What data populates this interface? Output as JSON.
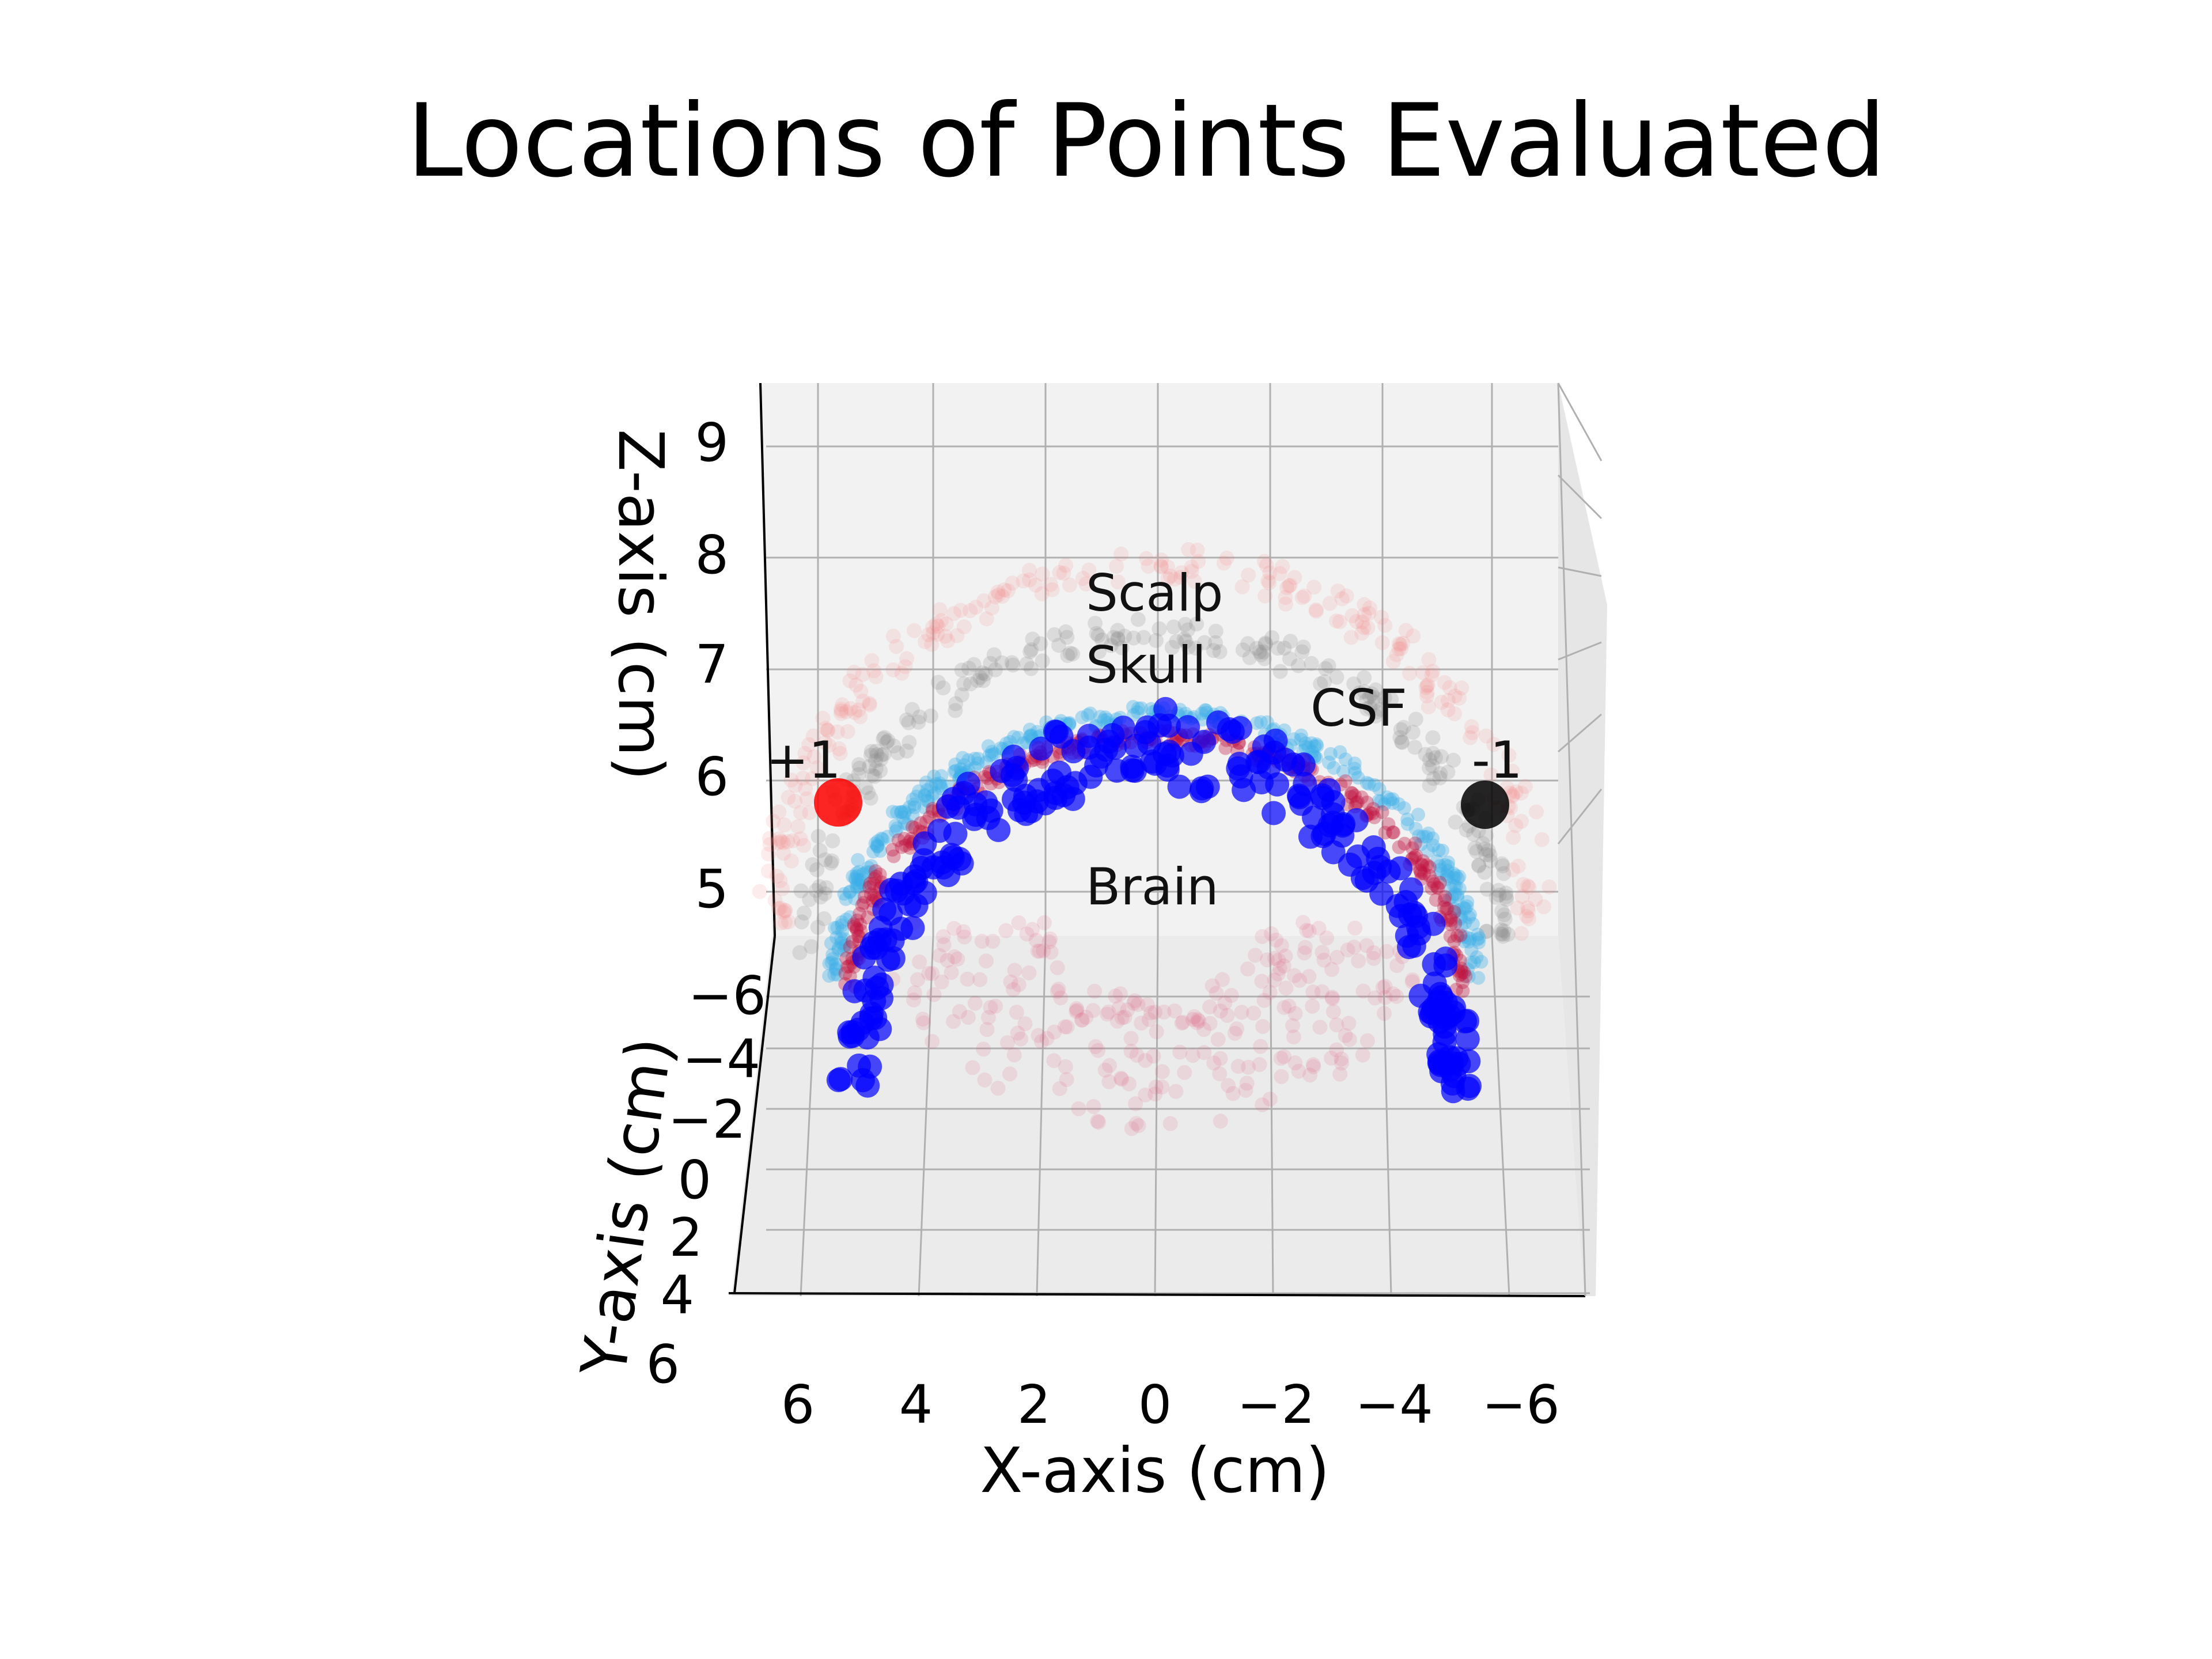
{
  "chart_data": {
    "type": "scatter",
    "subtype": "3d-scatter",
    "title": "Locations of Points Evaluated",
    "xlabel": "X-axis (cm)",
    "ylabel": "Y-axis (cm)",
    "zlabel": "Z-axis (cm)",
    "x_ticks": [
      "6",
      "4",
      "2",
      "0",
      "−2",
      "−4",
      "−6"
    ],
    "y_ticks": [
      "−6",
      "−4",
      "−2",
      "0",
      "2",
      "4",
      "6"
    ],
    "z_ticks": [
      "5",
      "6",
      "7",
      "8",
      "9"
    ],
    "xlim": [
      7.2,
      -7.2
    ],
    "ylim": [
      -7,
      6
    ],
    "zlim": [
      4.6,
      9.5
    ],
    "grid": true,
    "annotations": [
      {
        "text": "Scalp",
        "x": 0,
        "y": 0,
        "z": 7.8
      },
      {
        "text": "Skull",
        "x": 0,
        "y": 0,
        "z": 7.2
      },
      {
        "text": "CSF",
        "x": -3.5,
        "y": 0,
        "z": 6.4
      },
      {
        "text": "Brain",
        "x": 0,
        "y": 0,
        "z": 5.1
      },
      {
        "text": "+1",
        "x": 6.5,
        "y": 0,
        "z": 6.1
      },
      {
        "text": "-1",
        "x": -6.2,
        "y": 0,
        "z": 6.1
      }
    ],
    "electrodes": [
      {
        "label": "+1",
        "x": 5.4,
        "y": 0,
        "z": 5.8,
        "color": "#ff0000"
      },
      {
        "label": "-1",
        "x": -5.4,
        "y": 0,
        "z": 5.8,
        "color": "#000000"
      }
    ],
    "series": [
      {
        "layer": "scalp",
        "color": "#f08080",
        "opacity": 0.15,
        "radius_cm": 7.9
      },
      {
        "layer": "skull",
        "color": "#808080",
        "opacity": 0.2,
        "radius_cm": 7.0
      },
      {
        "layer": "csf",
        "color": "#3bb0e8",
        "opacity": 0.35,
        "radius_cm": 6.6
      },
      {
        "layer": "outer brain",
        "color": "#c01040",
        "opacity": 0.35,
        "radius_cm": 6.3
      },
      {
        "layer": "brain interior",
        "color": "#e06080",
        "opacity": 0.15,
        "radius_cm": 4.5
      },
      {
        "layer": "brain surface",
        "color": "#0000ff",
        "opacity": 0.7,
        "radius_cm": 5.5
      }
    ]
  }
}
